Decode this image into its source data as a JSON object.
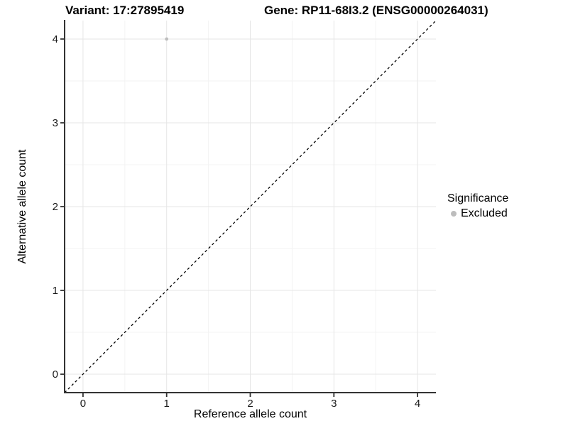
{
  "titles": {
    "variant": "Variant: 17:27895419",
    "gene": "Gene: RP11-68I3.2 (ENSG00000264031)"
  },
  "chart_data": {
    "type": "scatter",
    "title_left": "Variant: 17:27895419",
    "title_right": "Gene: RP11-68I3.2 (ENSG00000264031)",
    "xlabel": "Reference allele count",
    "ylabel": "Alternative allele count",
    "xlim": [
      -0.22,
      4.22
    ],
    "ylim": [
      -0.22,
      4.22
    ],
    "xticks": [
      0,
      1,
      2,
      3,
      4
    ],
    "yticks": [
      0,
      1,
      2,
      3,
      4
    ],
    "minor_ticks": [
      0.5,
      1.5,
      2.5,
      3.5
    ],
    "grid": true,
    "series": [
      {
        "name": "Excluded",
        "color": "#bdbdbd",
        "points": [
          {
            "x": 1,
            "y": 4
          }
        ]
      }
    ],
    "reference_line": {
      "type": "identity-diagonal",
      "style": "dashed",
      "color": "#000000"
    },
    "legend": {
      "title": "Significance",
      "position": "right",
      "items": [
        {
          "label": "Excluded",
          "color": "#bdbdbd"
        }
      ]
    }
  },
  "colors": {
    "background": "#ffffff",
    "point": "#bdbdbd",
    "grid_major": "#e6e6e6",
    "grid_minor": "#f3f3f3",
    "axis_line": "#333333",
    "tick_mark": "#333333",
    "tick_text": "#1a1a1a",
    "reference_line": "#000000"
  }
}
